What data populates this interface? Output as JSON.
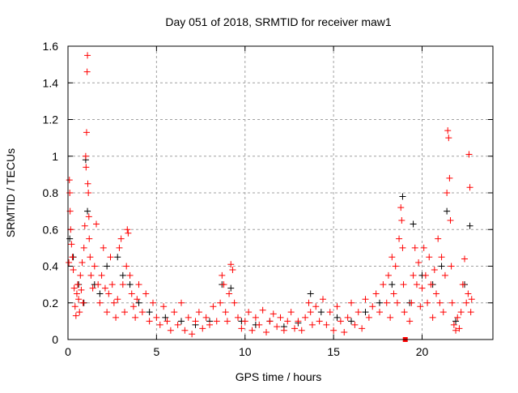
{
  "chart_data": {
    "type": "scatter",
    "title": "Day 051 of 2018, SRMTID for receiver maw1",
    "xlabel": "GPS time / hours",
    "ylabel": "SRMTID / TECUs",
    "xlim": [
      0,
      24
    ],
    "ylim": [
      0,
      1.6
    ],
    "xticks": [
      "0",
      "5",
      "10",
      "15",
      "20"
    ],
    "xtick_values": [
      0,
      5,
      10,
      15,
      20
    ],
    "yticks": [
      "0",
      "0.2",
      "0.4",
      "0.6",
      "0.8",
      "1",
      "1.2",
      "1.4",
      "1.6"
    ],
    "ytick_values": [
      0,
      0.2,
      0.4,
      0.6,
      0.8,
      1.0,
      1.2,
      1.4,
      1.6
    ],
    "grid": true,
    "series": [
      {
        "name": "black",
        "color": "#000000",
        "marker": "plus",
        "points": [
          [
            0.1,
            0.55
          ],
          [
            0.3,
            0.45
          ],
          [
            0.6,
            0.3
          ],
          [
            0.9,
            0.2
          ],
          [
            1.0,
            0.98
          ],
          [
            1.1,
            0.7
          ],
          [
            1.5,
            0.3
          ],
          [
            1.8,
            0.25
          ],
          [
            2.2,
            0.4
          ],
          [
            2.8,
            0.45
          ],
          [
            3.1,
            0.35
          ],
          [
            3.5,
            0.3
          ],
          [
            4.0,
            0.2
          ],
          [
            4.6,
            0.15
          ],
          [
            5.5,
            0.12
          ],
          [
            6.4,
            0.1
          ],
          [
            7.2,
            0.08
          ],
          [
            8.0,
            0.1
          ],
          [
            8.7,
            0.3
          ],
          [
            9.2,
            0.28
          ],
          [
            9.8,
            0.1
          ],
          [
            10.6,
            0.08
          ],
          [
            11.4,
            0.1
          ],
          [
            12.2,
            0.07
          ],
          [
            13.0,
            0.09
          ],
          [
            13.7,
            0.25
          ],
          [
            14.3,
            0.15
          ],
          [
            15.2,
            0.12
          ],
          [
            16.0,
            0.1
          ],
          [
            16.8,
            0.15
          ],
          [
            17.6,
            0.2
          ],
          [
            18.3,
            0.3
          ],
          [
            18.9,
            0.78
          ],
          [
            19.3,
            0.2
          ],
          [
            19.5,
            0.63
          ],
          [
            20.0,
            0.35
          ],
          [
            20.6,
            0.3
          ],
          [
            21.1,
            0.4
          ],
          [
            21.4,
            0.7
          ],
          [
            21.9,
            0.1
          ],
          [
            22.4,
            0.3
          ],
          [
            22.7,
            0.62
          ]
        ]
      },
      {
        "name": "red",
        "color": "#ff0000",
        "marker": "plus",
        "points": [
          [
            0.05,
            0.42
          ],
          [
            0.08,
            0.87
          ],
          [
            0.1,
            0.8
          ],
          [
            0.12,
            0.7
          ],
          [
            0.15,
            0.6
          ],
          [
            0.2,
            0.52
          ],
          [
            0.25,
            0.45
          ],
          [
            0.3,
            0.38
          ],
          [
            0.35,
            0.28
          ],
          [
            0.4,
            0.18
          ],
          [
            0.45,
            0.13
          ],
          [
            0.5,
            0.25
          ],
          [
            0.55,
            0.3
          ],
          [
            0.6,
            0.22
          ],
          [
            0.65,
            0.15
          ],
          [
            0.7,
            0.35
          ],
          [
            0.75,
            0.27
          ],
          [
            0.8,
            0.42
          ],
          [
            0.85,
            0.2
          ],
          [
            0.9,
            0.5
          ],
          [
            0.95,
            0.62
          ],
          [
            1.0,
            1.0
          ],
          [
            1.02,
            0.94
          ],
          [
            1.05,
            1.13
          ],
          [
            1.08,
            1.46
          ],
          [
            1.1,
            1.55
          ],
          [
            1.12,
            0.85
          ],
          [
            1.15,
            0.8
          ],
          [
            1.18,
            0.67
          ],
          [
            1.2,
            0.55
          ],
          [
            1.25,
            0.45
          ],
          [
            1.3,
            0.35
          ],
          [
            1.4,
            0.28
          ],
          [
            1.5,
            0.4
          ],
          [
            1.6,
            0.63
          ],
          [
            1.7,
            0.3
          ],
          [
            1.8,
            0.2
          ],
          [
            1.9,
            0.35
          ],
          [
            2.0,
            0.5
          ],
          [
            2.1,
            0.28
          ],
          [
            2.2,
            0.15
          ],
          [
            2.3,
            0.25
          ],
          [
            2.4,
            0.45
          ],
          [
            2.5,
            0.3
          ],
          [
            2.6,
            0.2
          ],
          [
            2.7,
            0.12
          ],
          [
            2.8,
            0.22
          ],
          [
            2.9,
            0.5
          ],
          [
            3.0,
            0.55
          ],
          [
            3.1,
            0.3
          ],
          [
            3.2,
            0.15
          ],
          [
            3.3,
            0.4
          ],
          [
            3.35,
            0.6
          ],
          [
            3.4,
            0.58
          ],
          [
            3.5,
            0.35
          ],
          [
            3.6,
            0.25
          ],
          [
            3.7,
            0.18
          ],
          [
            3.8,
            0.12
          ],
          [
            3.9,
            0.22
          ],
          [
            4.0,
            0.3
          ],
          [
            4.2,
            0.15
          ],
          [
            4.4,
            0.25
          ],
          [
            4.6,
            0.1
          ],
          [
            4.8,
            0.2
          ],
          [
            5.0,
            0.12
          ],
          [
            5.2,
            0.08
          ],
          [
            5.4,
            0.18
          ],
          [
            5.6,
            0.1
          ],
          [
            5.8,
            0.05
          ],
          [
            6.0,
            0.15
          ],
          [
            6.2,
            0.08
          ],
          [
            6.4,
            0.2
          ],
          [
            6.6,
            0.05
          ],
          [
            6.8,
            0.12
          ],
          [
            7.0,
            0.03
          ],
          [
            7.2,
            0.1
          ],
          [
            7.4,
            0.15
          ],
          [
            7.6,
            0.06
          ],
          [
            7.8,
            0.12
          ],
          [
            8.0,
            0.08
          ],
          [
            8.2,
            0.18
          ],
          [
            8.4,
            0.1
          ],
          [
            8.6,
            0.2
          ],
          [
            8.7,
            0.35
          ],
          [
            8.8,
            0.3
          ],
          [
            8.9,
            0.15
          ],
          [
            9.0,
            0.1
          ],
          [
            9.1,
            0.25
          ],
          [
            9.2,
            0.41
          ],
          [
            9.3,
            0.38
          ],
          [
            9.4,
            0.2
          ],
          [
            9.6,
            0.12
          ],
          [
            9.8,
            0.06
          ],
          [
            10.0,
            0.1
          ],
          [
            10.2,
            0.15
          ],
          [
            10.4,
            0.05
          ],
          [
            10.6,
            0.12
          ],
          [
            10.8,
            0.08
          ],
          [
            11.0,
            0.16
          ],
          [
            11.2,
            0.04
          ],
          [
            11.4,
            0.1
          ],
          [
            11.6,
            0.14
          ],
          [
            11.8,
            0.07
          ],
          [
            12.0,
            0.12
          ],
          [
            12.2,
            0.05
          ],
          [
            12.4,
            0.1
          ],
          [
            12.6,
            0.15
          ],
          [
            12.8,
            0.06
          ],
          [
            13.0,
            0.1
          ],
          [
            13.2,
            0.05
          ],
          [
            13.4,
            0.12
          ],
          [
            13.6,
            0.2
          ],
          [
            13.7,
            0.15
          ],
          [
            13.8,
            0.08
          ],
          [
            14.0,
            0.18
          ],
          [
            14.2,
            0.1
          ],
          [
            14.4,
            0.22
          ],
          [
            14.6,
            0.08
          ],
          [
            14.8,
            0.15
          ],
          [
            15.0,
            0.05
          ],
          [
            15.2,
            0.18
          ],
          [
            15.4,
            0.1
          ],
          [
            15.6,
            0.04
          ],
          [
            15.8,
            0.12
          ],
          [
            16.0,
            0.2
          ],
          [
            16.2,
            0.08
          ],
          [
            16.4,
            0.15
          ],
          [
            16.6,
            0.06
          ],
          [
            16.8,
            0.22
          ],
          [
            17.0,
            0.12
          ],
          [
            17.2,
            0.18
          ],
          [
            17.4,
            0.25
          ],
          [
            17.6,
            0.15
          ],
          [
            17.8,
            0.3
          ],
          [
            18.0,
            0.2
          ],
          [
            18.1,
            0.35
          ],
          [
            18.2,
            0.12
          ],
          [
            18.3,
            0.45
          ],
          [
            18.4,
            0.25
          ],
          [
            18.5,
            0.4
          ],
          [
            18.6,
            0.2
          ],
          [
            18.7,
            0.55
          ],
          [
            18.8,
            0.72
          ],
          [
            18.85,
            0.65
          ],
          [
            18.9,
            0.5
          ],
          [
            18.95,
            0.3
          ],
          [
            19.0,
            0.15
          ],
          [
            19.3,
            0.1
          ],
          [
            19.4,
            0.2
          ],
          [
            19.5,
            0.35
          ],
          [
            19.6,
            0.5
          ],
          [
            19.7,
            0.3
          ],
          [
            19.8,
            0.42
          ],
          [
            19.9,
            0.18
          ],
          [
            20.0,
            0.28
          ],
          [
            20.1,
            0.5
          ],
          [
            20.2,
            0.35
          ],
          [
            20.3,
            0.2
          ],
          [
            20.4,
            0.45
          ],
          [
            20.5,
            0.3
          ],
          [
            20.6,
            0.12
          ],
          [
            20.7,
            0.38
          ],
          [
            20.8,
            0.25
          ],
          [
            20.9,
            0.55
          ],
          [
            21.0,
            0.2
          ],
          [
            21.1,
            0.45
          ],
          [
            21.2,
            0.15
          ],
          [
            21.3,
            0.35
          ],
          [
            21.4,
            0.8
          ],
          [
            21.45,
            1.14
          ],
          [
            21.5,
            1.1
          ],
          [
            21.55,
            0.88
          ],
          [
            21.6,
            0.65
          ],
          [
            21.65,
            0.4
          ],
          [
            21.7,
            0.2
          ],
          [
            21.8,
            0.08
          ],
          [
            21.9,
            0.05
          ],
          [
            22.0,
            0.12
          ],
          [
            22.1,
            0.06
          ],
          [
            22.2,
            0.15
          ],
          [
            22.3,
            0.3
          ],
          [
            22.4,
            0.44
          ],
          [
            22.5,
            0.2
          ],
          [
            22.6,
            0.25
          ],
          [
            22.65,
            1.01
          ],
          [
            22.7,
            0.83
          ],
          [
            22.75,
            0.15
          ],
          [
            22.8,
            0.22
          ]
        ]
      },
      {
        "name": "red-square",
        "color": "#ff0000",
        "marker": "square",
        "points": [
          [
            19.05,
            0.0
          ]
        ]
      }
    ]
  }
}
